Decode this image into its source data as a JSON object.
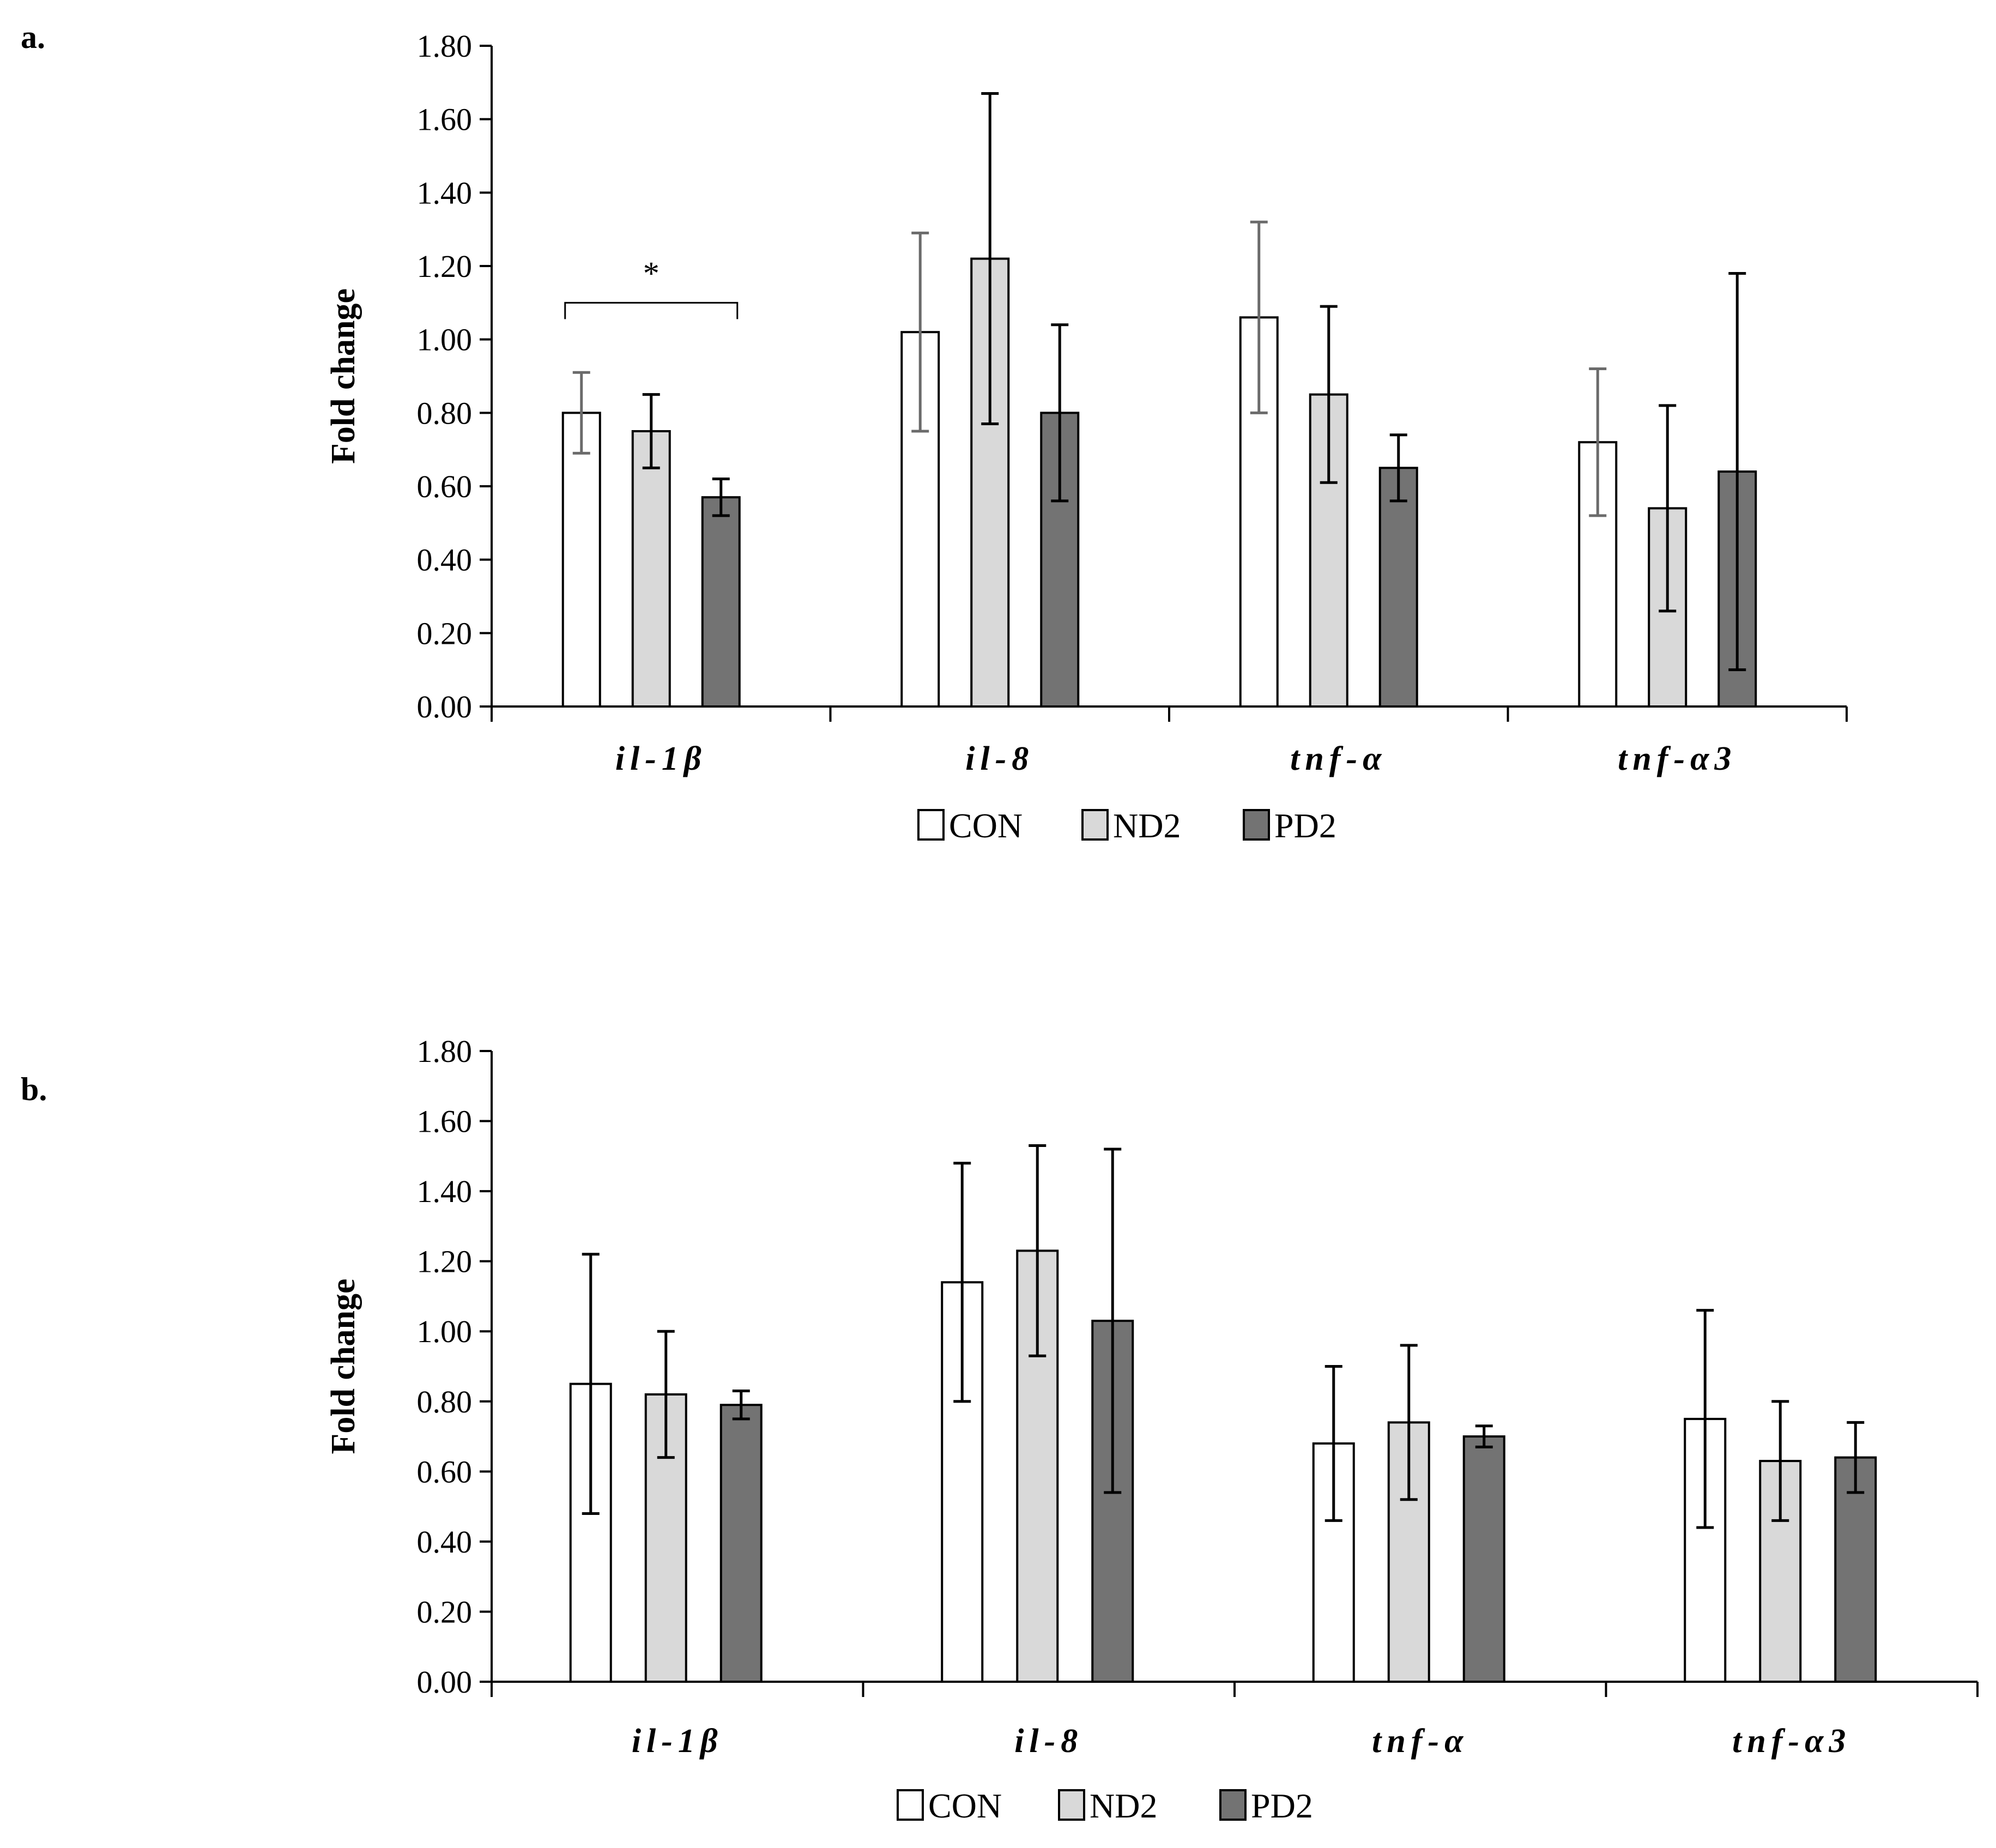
{
  "chart_data": [
    {
      "panel_label": "a.",
      "type": "bar",
      "ylabel": "Fold change",
      "xlabel": "",
      "ylim": [
        0,
        1.8
      ],
      "yticks": [
        "0.00",
        "0.20",
        "0.40",
        "0.60",
        "0.80",
        "1.00",
        "1.20",
        "1.40",
        "1.60",
        "1.80"
      ],
      "categories": [
        "il-1β",
        "il-8",
        "tnf-α",
        "tnf-α3"
      ],
      "series": [
        {
          "name": "CON",
          "color": "#ffffff",
          "values": [
            0.8,
            1.02,
            1.06,
            0.72
          ],
          "errors": [
            0.11,
            0.27,
            0.26,
            0.2
          ]
        },
        {
          "name": "ND2",
          "color": "#d9d9d9",
          "values": [
            0.75,
            1.22,
            0.85,
            0.54
          ],
          "errors": [
            0.1,
            0.45,
            0.24,
            0.28
          ]
        },
        {
          "name": "PD2",
          "color": "#737373",
          "values": [
            0.57,
            0.8,
            0.65,
            0.64
          ],
          "errors": [
            0.05,
            0.24,
            0.09,
            0.54
          ]
        }
      ],
      "annotations": [
        {
          "text": "*",
          "category": "il-1β",
          "from_series": "CON",
          "to_series": "PD2",
          "y": 1.1
        }
      ],
      "legend": "bottom"
    },
    {
      "panel_label": "b.",
      "type": "bar",
      "ylabel": "Fold change",
      "xlabel": "",
      "ylim": [
        0,
        1.8
      ],
      "yticks": [
        "0.00",
        "0.20",
        "0.40",
        "0.60",
        "0.80",
        "1.00",
        "1.20",
        "1.40",
        "1.60",
        "1.80"
      ],
      "categories": [
        "il-1β",
        "il-8",
        "tnf-α",
        "tnf-α3"
      ],
      "series": [
        {
          "name": "CON",
          "color": "#ffffff",
          "values": [
            0.85,
            1.14,
            0.68,
            0.75
          ],
          "errors": [
            0.37,
            0.34,
            0.22,
            0.31
          ]
        },
        {
          "name": "ND2",
          "color": "#d9d9d9",
          "values": [
            0.82,
            1.23,
            0.74,
            0.63
          ],
          "errors": [
            0.18,
            0.3,
            0.22,
            0.17
          ]
        },
        {
          "name": "PD2",
          "color": "#737373",
          "values": [
            0.79,
            1.03,
            0.7,
            0.64
          ],
          "errors": [
            0.04,
            0.49,
            0.03,
            0.1
          ]
        }
      ],
      "annotations": [],
      "legend": "bottom"
    }
  ]
}
